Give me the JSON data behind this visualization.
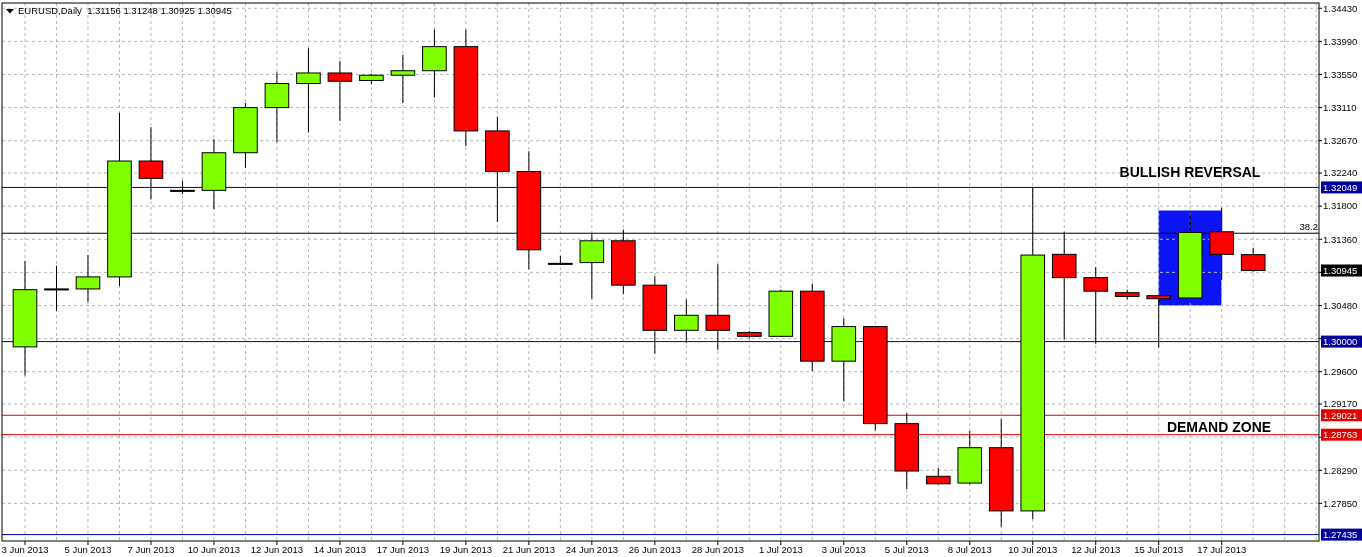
{
  "chart_data": {
    "type": "candlestick",
    "title": "EURUSD,Daily  1.31156 1.31248 1.30925 1.30945",
    "categories": [
      "3 Jun 2013",
      null,
      "5 Jun 2013",
      null,
      "7 Jun 2013",
      null,
      "10 Jun 2013",
      null,
      "12 Jun 2013",
      null,
      "14 Jun 2013",
      null,
      "17 Jun 2013",
      null,
      "19 Jun 2013",
      null,
      "21 Jun 2013",
      null,
      "24 Jun 2013",
      null,
      "26 Jun 2013",
      null,
      "28 Jun 2013",
      null,
      "1 Jul 2013",
      null,
      "3 Jul 2013",
      null,
      "5 Jul 2013",
      null,
      "8 Jul 2013",
      null,
      "10 Jul 2013",
      null,
      "12 Jul 2013",
      null,
      "15 Jul 2013",
      null,
      "17 Jul 2013",
      null
    ],
    "ohlc": [
      [
        1.2993,
        1.3107,
        1.2955,
        1.3069
      ],
      [
        1.307,
        1.3101,
        1.3041,
        1.307
      ],
      [
        1.307,
        1.3115,
        1.3052,
        1.3086
      ],
      [
        1.3086,
        1.3304,
        1.3074,
        1.324
      ],
      [
        1.324,
        1.3285,
        1.3189,
        1.3217
      ],
      [
        1.3201,
        1.3214,
        1.3196,
        1.3201
      ],
      [
        1.3201,
        1.3269,
        1.3176,
        1.3251
      ],
      [
        1.3251,
        1.3317,
        1.3231,
        1.3311
      ],
      [
        1.3311,
        1.3358,
        1.3265,
        1.3343
      ],
      [
        1.3343,
        1.339,
        1.3278,
        1.3357
      ],
      [
        1.3357,
        1.3373,
        1.3293,
        1.3346
      ],
      [
        1.3347,
        1.3356,
        1.3342,
        1.3354
      ],
      [
        1.3354,
        1.3381,
        1.3317,
        1.336
      ],
      [
        1.336,
        1.3415,
        1.3324,
        1.3392
      ],
      [
        1.3392,
        1.3415,
        1.326,
        1.328
      ],
      [
        1.328,
        1.3299,
        1.3159,
        1.3226
      ],
      [
        1.3226,
        1.3253,
        1.3096,
        1.3122
      ],
      [
        1.3104,
        1.3114,
        1.3102,
        1.3104
      ],
      [
        1.3105,
        1.3143,
        1.3057,
        1.3134
      ],
      [
        1.3134,
        1.3149,
        1.3063,
        1.3075
      ],
      [
        1.3075,
        1.3087,
        1.2984,
        1.3015
      ],
      [
        1.3015,
        1.3056,
        1.2998,
        1.3035
      ],
      [
        1.3035,
        1.3103,
        1.2989,
        1.3015
      ],
      [
        1.3012,
        1.3014,
        1.3004,
        1.3007
      ],
      [
        1.3007,
        1.3069,
        1.3006,
        1.3067
      ],
      [
        1.3067,
        1.3077,
        1.2961,
        1.2974
      ],
      [
        1.2974,
        1.3031,
        1.2921,
        1.302
      ],
      [
        1.302,
        1.3021,
        1.2882,
        1.2891
      ],
      [
        1.2891,
        1.2905,
        1.2804,
        1.2828
      ],
      [
        1.2821,
        1.2832,
        1.281,
        1.2811
      ],
      [
        1.2812,
        1.2881,
        1.281,
        1.2859
      ],
      [
        1.2859,
        1.2897,
        1.2754,
        1.2775
      ],
      [
        1.2775,
        1.3205,
        1.2764,
        1.3115
      ],
      [
        1.3116,
        1.3146,
        1.3003,
        1.3085
      ],
      [
        1.3085,
        1.3099,
        1.2997,
        1.3067
      ],
      [
        1.3065,
        1.3069,
        1.3056,
        1.306
      ],
      [
        1.3061,
        1.3062,
        1.2992,
        1.3057
      ],
      [
        1.3058,
        1.317,
        1.3055,
        1.3145
      ],
      [
        1.3146,
        1.3178,
        1.3082,
        1.3116
      ],
      [
        1.31156,
        1.31248,
        1.30925,
        1.30945
      ]
    ],
    "colors": [
      "#7fff00",
      "#000000",
      "#7fff00",
      "#7fff00",
      "#ff0000",
      "#000000",
      "#7fff00",
      "#7fff00",
      "#7fff00",
      "#7fff00",
      "#ff0000",
      "#7fff00",
      "#7fff00",
      "#7fff00",
      "#ff0000",
      "#ff0000",
      "#ff0000",
      "#000000",
      "#7fff00",
      "#ff0000",
      "#ff0000",
      "#7fff00",
      "#ff0000",
      "#ff0000",
      "#7fff00",
      "#ff0000",
      "#7fff00",
      "#ff0000",
      "#ff0000",
      "#ff0000",
      "#7fff00",
      "#ff0000",
      "#7fff00",
      "#ff0000",
      "#ff0000",
      "#ff0000",
      "#ff0000",
      "#7fff00",
      "#ff0000",
      "#ff0000"
    ],
    "ylim": [
      1.2735,
      1.345
    ],
    "yticks": [
      {
        "value": 1.3443,
        "label": "1.34430"
      },
      {
        "value": 1.3399,
        "label": "1.33990"
      },
      {
        "value": 1.3355,
        "label": "1.33550"
      },
      {
        "value": 1.3311,
        "label": "1.33110"
      },
      {
        "value": 1.3267,
        "label": "1.32670"
      },
      {
        "value": 1.3224,
        "label": "1.32240"
      },
      {
        "value": 1.318,
        "label": "1.31800"
      },
      {
        "value": 1.3136,
        "label": "1.31360"
      },
      {
        "value": 1.3092,
        "label": null
      },
      {
        "value": 1.3048,
        "label": "1.30480"
      },
      {
        "value": 1.3004,
        "label": null
      },
      {
        "value": 1.296,
        "label": "1.29600"
      },
      {
        "value": 1.2917,
        "label": "1.29170"
      },
      {
        "value": 1.2873,
        "label": null
      },
      {
        "value": 1.2829,
        "label": "1.28290"
      },
      {
        "value": 1.2785,
        "label": "1.27850"
      }
    ],
    "grid": true,
    "ref_lines": [
      {
        "axis": "y",
        "value": 1.32049,
        "label": "1.32049",
        "color": "#000099"
      },
      {
        "axis": "y",
        "value": 1.3144,
        "color": "#000000"
      },
      {
        "axis": "y",
        "value": 1.3,
        "label": "1.30000",
        "color": "#000099"
      },
      {
        "axis": "y",
        "value": 1.29021,
        "label": "1.29021",
        "color": "#e00000"
      },
      {
        "axis": "y",
        "value": 1.28763,
        "label": "1.28763",
        "color": "#e00000"
      },
      {
        "axis": "y",
        "value": 1.27435,
        "label": "1.27435",
        "color": "#000099"
      }
    ],
    "annotations": [
      "BULLISH REVERSAL",
      "DEMAND ZONE",
      "1.30945",
      {
        "text": "38.2",
        "y": 1.3144
      }
    ]
  }
}
